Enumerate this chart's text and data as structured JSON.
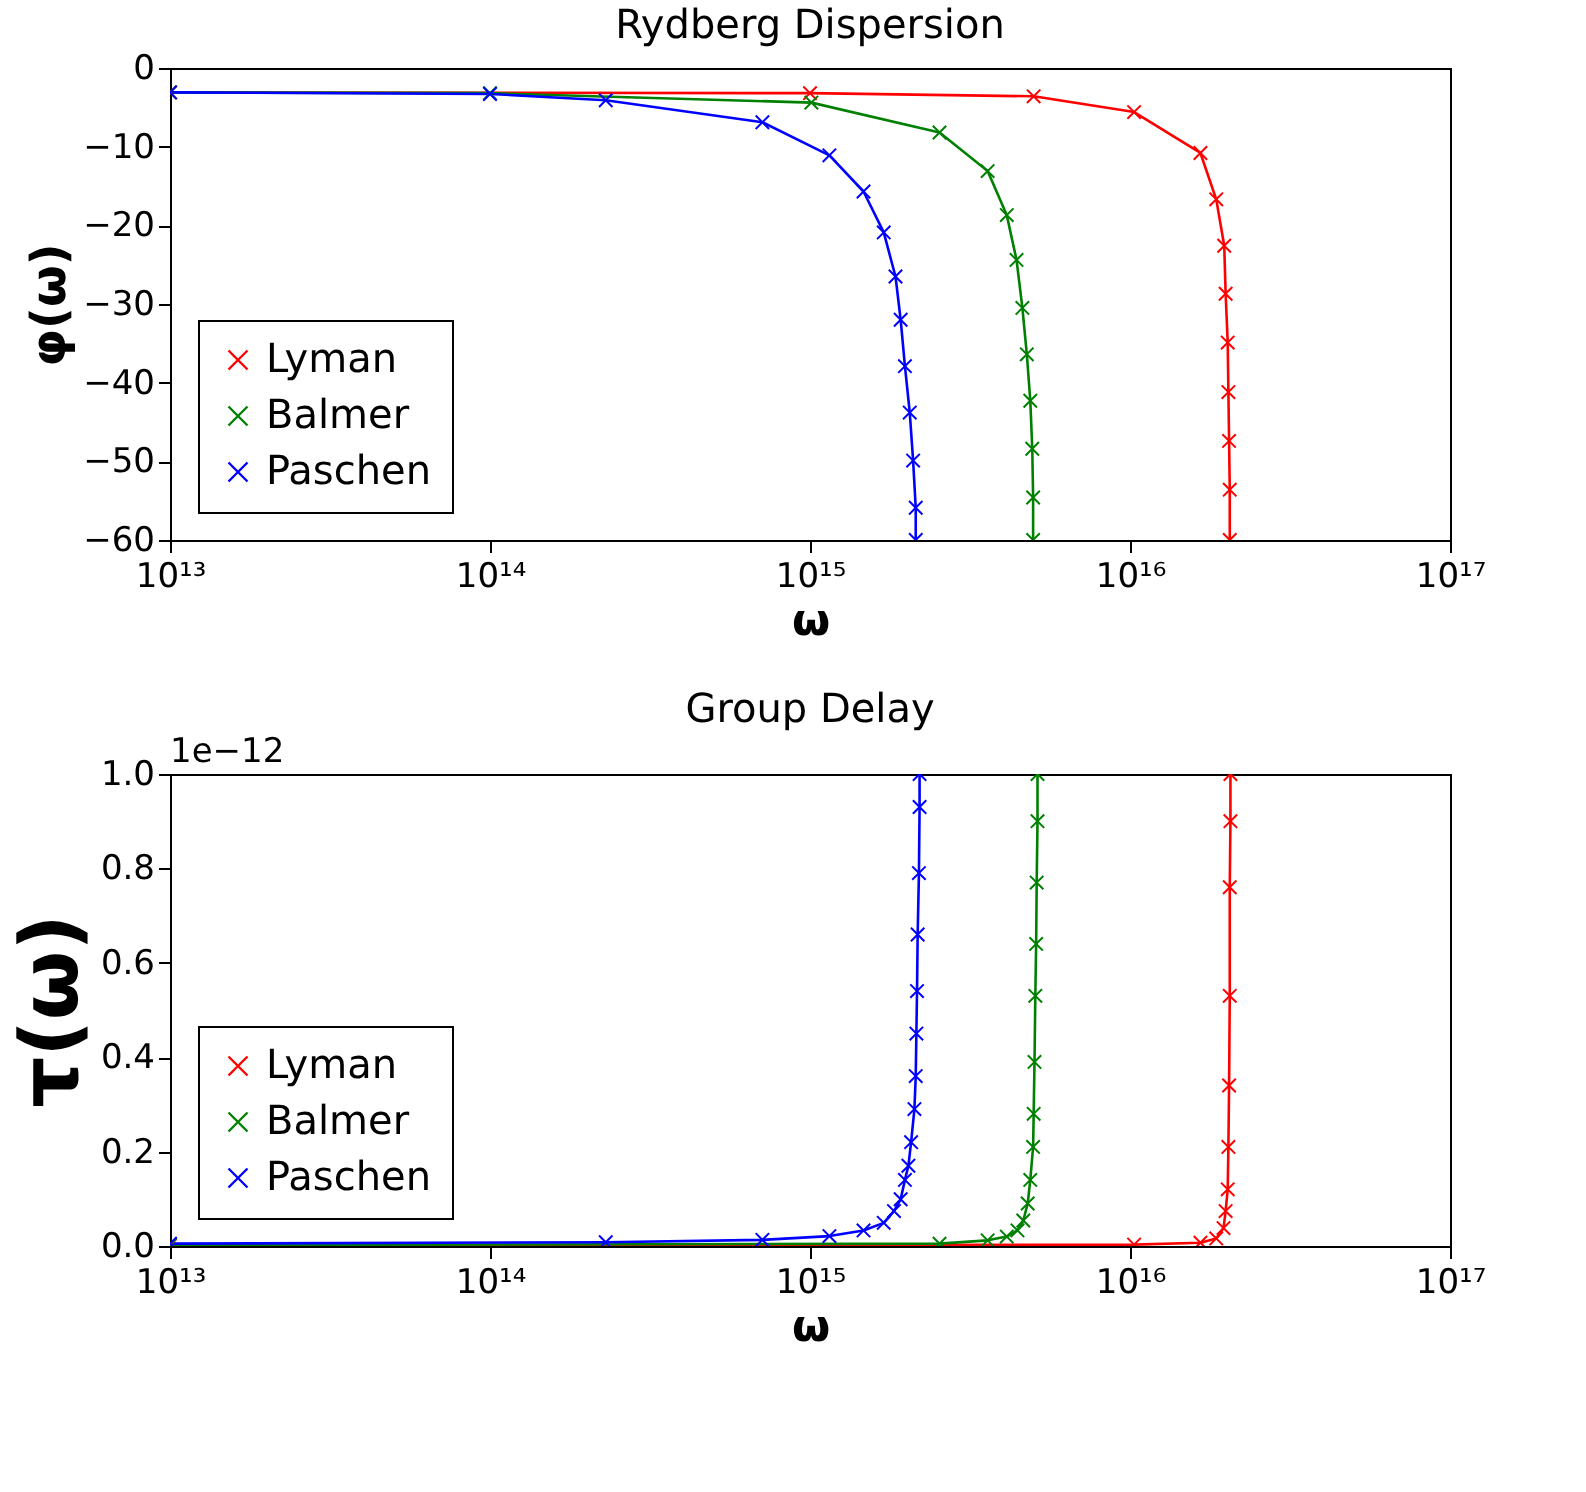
{
  "chart_data": [
    {
      "type": "line",
      "title": "Rydberg Dispersion",
      "xlabel": "ω",
      "ylabel": "φ(ω)",
      "log": "x",
      "grid": false,
      "legend": "bottom left",
      "marker": "cross",
      "line_style": "solid",
      "xlim": [
        10000000000000.0,
        1e+17
      ],
      "xticks": [
        {
          "value": 10000000000000.0,
          "label": "10¹³"
        },
        {
          "value": 100000000000000.0,
          "label": "10¹⁴"
        },
        {
          "value": 1000000000000000.0,
          "label": "10¹⁵"
        },
        {
          "value": 1e+16,
          "label": "10¹⁶"
        },
        {
          "value": 1e+17,
          "label": "10¹⁷"
        }
      ],
      "ylim": [
        -60,
        0
      ],
      "yticks": [
        {
          "value": -60,
          "label": "−60"
        },
        {
          "value": -50,
          "label": "−50"
        },
        {
          "value": -40,
          "label": "−40"
        },
        {
          "value": -30,
          "label": "−30"
        },
        {
          "value": -20,
          "label": "−20"
        },
        {
          "value": -10,
          "label": "−10"
        },
        0
      ],
      "series": [
        {
          "name": "Lyman",
          "color": "#ff0000",
          "x": [
            10000000000000.0,
            1000000000000000.0,
            5000000000000000.0,
            1.03e+16,
            1.66e+16,
            1.86e+16,
            1.97e+16,
            1.99e+16,
            2.02e+16,
            2.03e+16,
            2.04e+16,
            2.05e+16,
            2.05e+16
          ],
          "values": [
            -3.1,
            -3.2,
            -3.6,
            -5.6,
            -10.8,
            -16.7,
            -22.6,
            -28.7,
            -34.9,
            -41.2,
            -47.4,
            -53.6,
            -60
          ]
        },
        {
          "name": "Balmer",
          "color": "#008000",
          "x": [
            10000000000000.0,
            100000000000000.0,
            1010000000000000.0,
            2540000000000000.0,
            3590000000000000.0,
            4120000000000000.0,
            4420000000000000.0,
            4610000000000000.0,
            4760000000000000.0,
            4880000000000000.0,
            4950000000000000.0,
            4980000000000000.0,
            4980000000000000.0
          ],
          "values": [
            -3.1,
            -3.2,
            -4.4,
            -8.2,
            -13.1,
            -18.7,
            -24.4,
            -30.5,
            -36.4,
            -42.3,
            -48.4,
            -54.6,
            -60
          ]
        },
        {
          "name": "Paschen",
          "color": "#0000ff",
          "x": [
            10000000000000.0,
            100000000000000.0,
            230000000000000.0,
            710000000000000.0,
            1150000000000000.0,
            1470000000000000.0,
            1700000000000000.0,
            1850000000000000.0,
            1920000000000000.0,
            1980000000000000.0,
            2050000000000000.0,
            2100000000000000.0,
            2140000000000000.0,
            2140000000000000.0
          ],
          "values": [
            -3.1,
            -3.3,
            -4.1,
            -6.9,
            -11.1,
            -15.7,
            -20.9,
            -26.5,
            -32,
            -37.9,
            -43.8,
            -49.9,
            -55.9,
            -60
          ]
        }
      ]
    },
    {
      "type": "line",
      "title": "Group Delay",
      "xlabel": "ω",
      "ylabel": "τ(ω)",
      "log": "x",
      "grid": false,
      "legend": "bottom left",
      "marker": "cross",
      "line_style": "solid",
      "annotations": [
        "1e−12"
      ],
      "xlim": [
        10000000000000.0,
        1e+17
      ],
      "xticks": [
        {
          "value": 10000000000000.0,
          "label": "10¹³"
        },
        {
          "value": 100000000000000.0,
          "label": "10¹⁴"
        },
        {
          "value": 1000000000000000.0,
          "label": "10¹⁵"
        },
        {
          "value": 1e+16,
          "label": "10¹⁶"
        },
        {
          "value": 1e+17,
          "label": "10¹⁷"
        }
      ],
      "ylim": [
        0,
        1
      ],
      "yticks": [
        {
          "value": 0,
          "label": "0.0"
        },
        {
          "value": 0.2,
          "label": "0.2"
        },
        {
          "value": 0.4,
          "label": "0.4"
        },
        {
          "value": 0.6,
          "label": "0.6"
        },
        {
          "value": 0.8,
          "label": "0.8"
        },
        {
          "value": 1,
          "label": "1.0"
        }
      ],
      "series": [
        {
          "name": "Lyman",
          "color": "#ff0000",
          "x": [
            10000000000000.0,
            1.03e+16,
            1.66e+16,
            1.86e+16,
            1.96e+16,
            1.99e+16,
            2.02e+16,
            2.03e+16,
            2.04e+16,
            2.05e+16,
            2.05e+16,
            2.06e+16,
            2.06e+16
          ],
          "values": [
            0.001,
            0.003,
            0.007,
            0.016,
            0.038,
            0.074,
            0.12,
            0.21,
            0.34,
            0.53,
            0.76,
            0.9,
            1.0
          ]
        },
        {
          "name": "Balmer",
          "color": "#008000",
          "x": [
            10000000000000.0,
            2540000000000000.0,
            3590000000000000.0,
            4120000000000000.0,
            4450000000000000.0,
            4640000000000000.0,
            4790000000000000.0,
            4880000000000000.0,
            4980000000000000.0,
            5000000000000000.0,
            5030000000000000.0,
            5060000000000000.0,
            5090000000000000.0,
            5110000000000000.0,
            5140000000000000.0,
            5140000000000000.0
          ],
          "values": [
            0.002,
            0.005,
            0.012,
            0.02,
            0.033,
            0.054,
            0.09,
            0.14,
            0.21,
            0.28,
            0.39,
            0.53,
            0.64,
            0.77,
            0.9,
            1.0
          ]
        },
        {
          "name": "Paschen",
          "color": "#0000ff",
          "x": [
            10000000000000.0,
            230000000000000.0,
            710000000000000.0,
            1150000000000000.0,
            1470000000000000.0,
            1700000000000000.0,
            1830000000000000.0,
            1920000000000000.0,
            1980000000000000.0,
            2030000000000000.0,
            2070000000000000.0,
            2120000000000000.0,
            2140000000000000.0,
            2150000000000000.0,
            2160000000000000.0,
            2170000000000000.0,
            2190000000000000.0,
            2200000000000000.0,
            2200000000000000.0
          ],
          "values": [
            0.005,
            0.008,
            0.013,
            0.021,
            0.033,
            0.049,
            0.074,
            0.099,
            0.14,
            0.17,
            0.22,
            0.29,
            0.36,
            0.45,
            0.54,
            0.66,
            0.79,
            0.93,
            1.0
          ]
        }
      ]
    }
  ]
}
